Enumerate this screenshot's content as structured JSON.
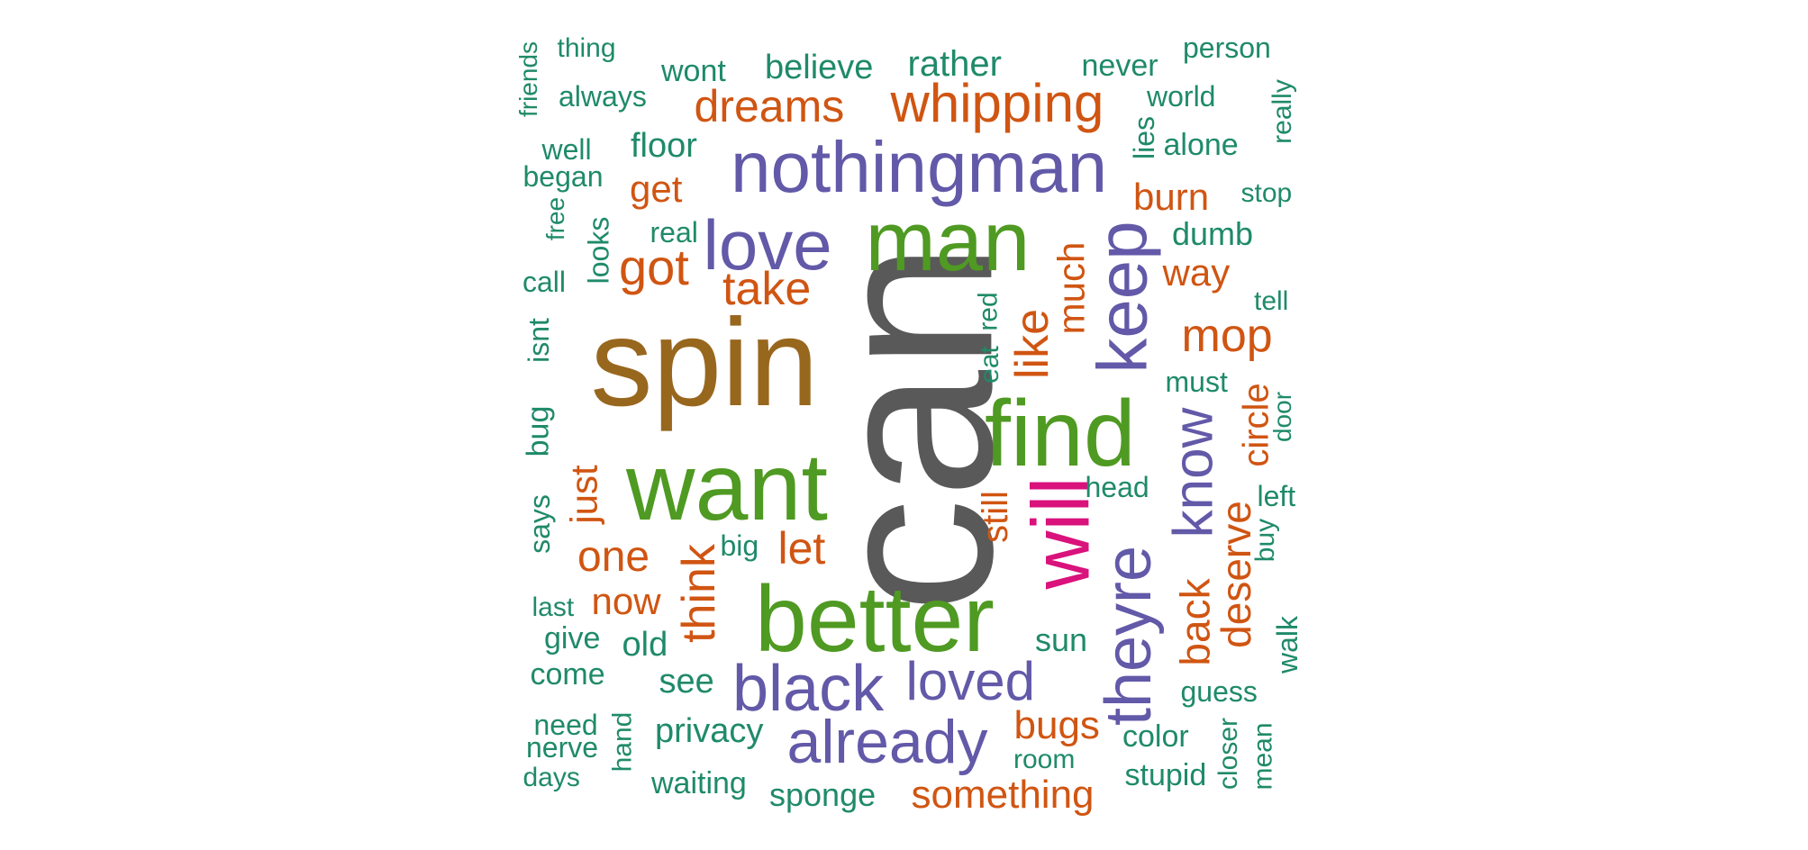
{
  "colors": {
    "can": "#595959",
    "spin": "#98671e",
    "green": "#4f9a22",
    "purple": "#6259a8",
    "orange": "#d05512",
    "teal": "#1f8a69",
    "pink": "#d9127c"
  },
  "words": [
    {
      "text": "can",
      "color": "can",
      "weight": 10
    },
    {
      "text": "spin",
      "color": "spin",
      "weight": 9
    },
    {
      "text": "man",
      "color": "green",
      "weight": 8
    },
    {
      "text": "better",
      "color": "green",
      "weight": 8
    },
    {
      "text": "find",
      "color": "green",
      "weight": 8
    },
    {
      "text": "want",
      "color": "green",
      "weight": 8
    },
    {
      "text": "nothingman",
      "color": "purple",
      "weight": 7
    },
    {
      "text": "love",
      "color": "purple",
      "weight": 7
    },
    {
      "text": "keep",
      "color": "purple",
      "weight": 7
    },
    {
      "text": "black",
      "color": "purple",
      "weight": 7
    },
    {
      "text": "theyre",
      "color": "purple",
      "weight": 7
    },
    {
      "text": "already",
      "color": "purple",
      "weight": 6
    },
    {
      "text": "loved",
      "color": "purple",
      "weight": 6
    },
    {
      "text": "know",
      "color": "purple",
      "weight": 6
    },
    {
      "text": "will",
      "color": "pink",
      "weight": 7
    },
    {
      "text": "whipping",
      "color": "orange",
      "weight": 5
    },
    {
      "text": "dreams",
      "color": "orange",
      "weight": 5
    },
    {
      "text": "got",
      "color": "orange",
      "weight": 5
    },
    {
      "text": "take",
      "color": "orange",
      "weight": 5
    },
    {
      "text": "mop",
      "color": "orange",
      "weight": 5
    },
    {
      "text": "like",
      "color": "orange",
      "weight": 5
    },
    {
      "text": "think",
      "color": "orange",
      "weight": 5
    },
    {
      "text": "let",
      "color": "orange",
      "weight": 5
    },
    {
      "text": "one",
      "color": "orange",
      "weight": 5
    },
    {
      "text": "back",
      "color": "orange",
      "weight": 5
    },
    {
      "text": "deserve",
      "color": "orange",
      "weight": 5
    },
    {
      "text": "something",
      "color": "orange",
      "weight": 4
    },
    {
      "text": "bugs",
      "color": "orange",
      "weight": 4
    },
    {
      "text": "burn",
      "color": "orange",
      "weight": 4
    },
    {
      "text": "way",
      "color": "orange",
      "weight": 4
    },
    {
      "text": "much",
      "color": "orange",
      "weight": 4
    },
    {
      "text": "just",
      "color": "orange",
      "weight": 4
    },
    {
      "text": "now",
      "color": "orange",
      "weight": 4
    },
    {
      "text": "get",
      "color": "orange",
      "weight": 4
    },
    {
      "text": "circle",
      "color": "orange",
      "weight": 4
    },
    {
      "text": "still",
      "color": "orange",
      "weight": 4
    },
    {
      "text": "thing",
      "color": "teal",
      "weight": 2
    },
    {
      "text": "friends",
      "color": "teal",
      "weight": 2
    },
    {
      "text": "wont",
      "color": "teal",
      "weight": 2
    },
    {
      "text": "believe",
      "color": "teal",
      "weight": 3
    },
    {
      "text": "rather",
      "color": "teal",
      "weight": 3
    },
    {
      "text": "never",
      "color": "teal",
      "weight": 2
    },
    {
      "text": "person",
      "color": "teal",
      "weight": 2
    },
    {
      "text": "always",
      "color": "teal",
      "weight": 2
    },
    {
      "text": "world",
      "color": "teal",
      "weight": 2
    },
    {
      "text": "really",
      "color": "teal",
      "weight": 2
    },
    {
      "text": "well",
      "color": "teal",
      "weight": 2
    },
    {
      "text": "floor",
      "color": "teal",
      "weight": 2
    },
    {
      "text": "lies",
      "color": "teal",
      "weight": 2
    },
    {
      "text": "alone",
      "color": "teal",
      "weight": 2
    },
    {
      "text": "began",
      "color": "teal",
      "weight": 2
    },
    {
      "text": "stop",
      "color": "teal",
      "weight": 2
    },
    {
      "text": "free",
      "color": "teal",
      "weight": 2
    },
    {
      "text": "real",
      "color": "teal",
      "weight": 2
    },
    {
      "text": "looks",
      "color": "teal",
      "weight": 2
    },
    {
      "text": "dumb",
      "color": "teal",
      "weight": 2
    },
    {
      "text": "call",
      "color": "teal",
      "weight": 2
    },
    {
      "text": "tell",
      "color": "teal",
      "weight": 2
    },
    {
      "text": "isnt",
      "color": "teal",
      "weight": 2
    },
    {
      "text": "red",
      "color": "teal",
      "weight": 2
    },
    {
      "text": "eat",
      "color": "teal",
      "weight": 2
    },
    {
      "text": "must",
      "color": "teal",
      "weight": 2
    },
    {
      "text": "door",
      "color": "teal",
      "weight": 2
    },
    {
      "text": "bug",
      "color": "teal",
      "weight": 2
    },
    {
      "text": "head",
      "color": "teal",
      "weight": 2
    },
    {
      "text": "left",
      "color": "teal",
      "weight": 2
    },
    {
      "text": "says",
      "color": "teal",
      "weight": 2
    },
    {
      "text": "big",
      "color": "teal",
      "weight": 2
    },
    {
      "text": "buy",
      "color": "teal",
      "weight": 2
    },
    {
      "text": "last",
      "color": "teal",
      "weight": 2
    },
    {
      "text": "give",
      "color": "teal",
      "weight": 2
    },
    {
      "text": "old",
      "color": "teal",
      "weight": 2
    },
    {
      "text": "sun",
      "color": "teal",
      "weight": 2
    },
    {
      "text": "walk",
      "color": "teal",
      "weight": 2
    },
    {
      "text": "come",
      "color": "teal",
      "weight": 2
    },
    {
      "text": "see",
      "color": "teal",
      "weight": 2
    },
    {
      "text": "guess",
      "color": "teal",
      "weight": 2
    },
    {
      "text": "need",
      "color": "teal",
      "weight": 2
    },
    {
      "text": "hand",
      "color": "teal",
      "weight": 2
    },
    {
      "text": "privacy",
      "color": "teal",
      "weight": 2
    },
    {
      "text": "color",
      "color": "teal",
      "weight": 2
    },
    {
      "text": "closer",
      "color": "teal",
      "weight": 2
    },
    {
      "text": "mean",
      "color": "teal",
      "weight": 2
    },
    {
      "text": "nerve",
      "color": "teal",
      "weight": 2
    },
    {
      "text": "room",
      "color": "teal",
      "weight": 2
    },
    {
      "text": "days",
      "color": "teal",
      "weight": 2
    },
    {
      "text": "waiting",
      "color": "teal",
      "weight": 2
    },
    {
      "text": "stupid",
      "color": "teal",
      "weight": 2
    },
    {
      "text": "sponge",
      "color": "teal",
      "weight": 2
    }
  ]
}
